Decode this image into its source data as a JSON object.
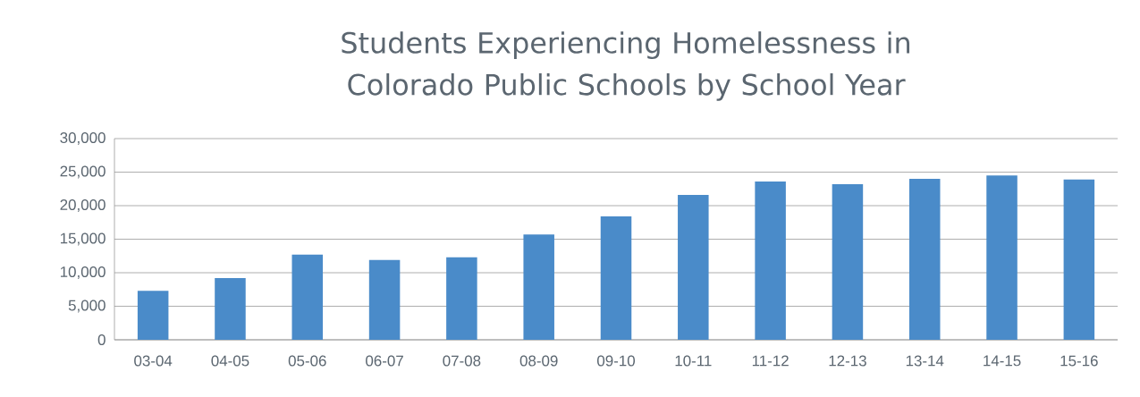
{
  "chart_data": {
    "type": "bar",
    "title": "Students Experiencing Homelessness in Colorado Public Schools by School Year",
    "categories": [
      "03-04",
      "04-05",
      "05-06",
      "06-07",
      "07-08",
      "08-09",
      "09-10",
      "10-11",
      "11-12",
      "12-13",
      "13-14",
      "14-15",
      "15-16"
    ],
    "values": [
      7300,
      9200,
      12700,
      11900,
      12300,
      15700,
      18400,
      21600,
      23600,
      23200,
      24000,
      24500,
      23900
    ],
    "color": "#4a8bc9",
    "ylim": [
      0,
      30000
    ],
    "yticks": [
      {
        "value": 0,
        "label": "0"
      },
      {
        "value": 5000,
        "label": "5,000"
      },
      {
        "value": 10000,
        "label": "10,000"
      },
      {
        "value": 15000,
        "label": "15,000"
      },
      {
        "value": 20000,
        "label": "20,000"
      },
      {
        "value": 25000,
        "label": "25,000"
      },
      {
        "value": 30000,
        "label": "30,000"
      }
    ],
    "grid": "y"
  }
}
